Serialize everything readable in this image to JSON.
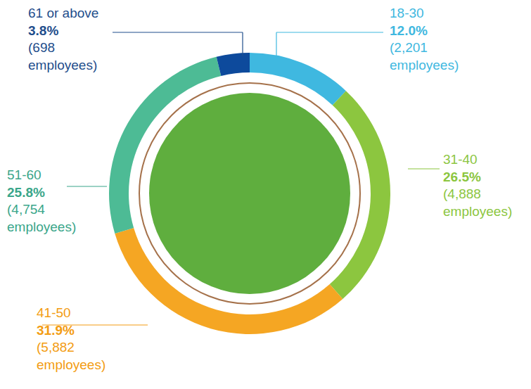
{
  "chart_data": {
    "type": "pie",
    "categories": [
      "18-30",
      "31-40",
      "41-50",
      "51-60",
      "61 or above"
    ],
    "values": [
      12.0,
      26.5,
      31.9,
      25.8,
      3.8
    ],
    "value_labels": [
      "12.0%",
      "26.5%",
      "31.9%",
      "25.8%",
      "3.8%"
    ],
    "employee_labels": [
      "(2,201 employees)",
      "(4,888 employees)",
      "(5,882 employees)",
      "(4,754 employees)",
      "(698 employees)"
    ],
    "colors": [
      "#3fb8e0",
      "#8cc63f",
      "#f5a623",
      "#4dbb95",
      "#0d4a9c"
    ],
    "data_labels": true
  }
}
